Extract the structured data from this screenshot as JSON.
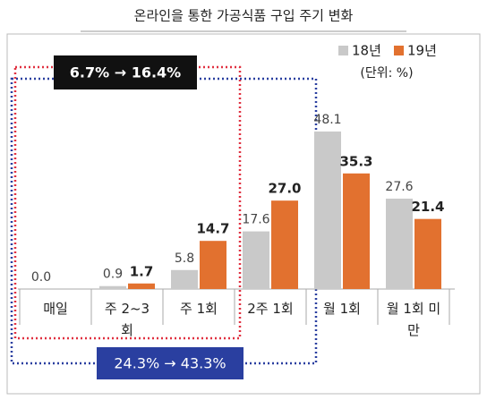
{
  "chart_data": {
    "type": "bar",
    "title": "온라인을 통한 가공식품 구입 주기 변화",
    "unit": "(단위: %)",
    "categories": [
      "매일",
      "주 2~3회",
      "주 1회",
      "2주 1회",
      "월 1회",
      "월 1회 미만"
    ],
    "series": [
      {
        "name": "18년",
        "color": "#c9c9c9",
        "values": [
          0,
          0.9,
          5.8,
          17.6,
          48.1,
          27.6
        ],
        "value_labels": [
          "0.0",
          "0.9",
          "5.8",
          "17.6",
          "48.1",
          "27.6"
        ]
      },
      {
        "name": "19년",
        "color": "#e2712f",
        "values": [
          null,
          1.7,
          14.7,
          27,
          35.3,
          21.4
        ],
        "value_labels": [
          null,
          "1.7",
          "14.7",
          "27.0",
          "35.3",
          "21.4"
        ]
      }
    ],
    "ylim": [
      0,
      50
    ],
    "annotations": [
      "6.7% → 16.4%",
      "24.3% → 43.3%"
    ]
  }
}
